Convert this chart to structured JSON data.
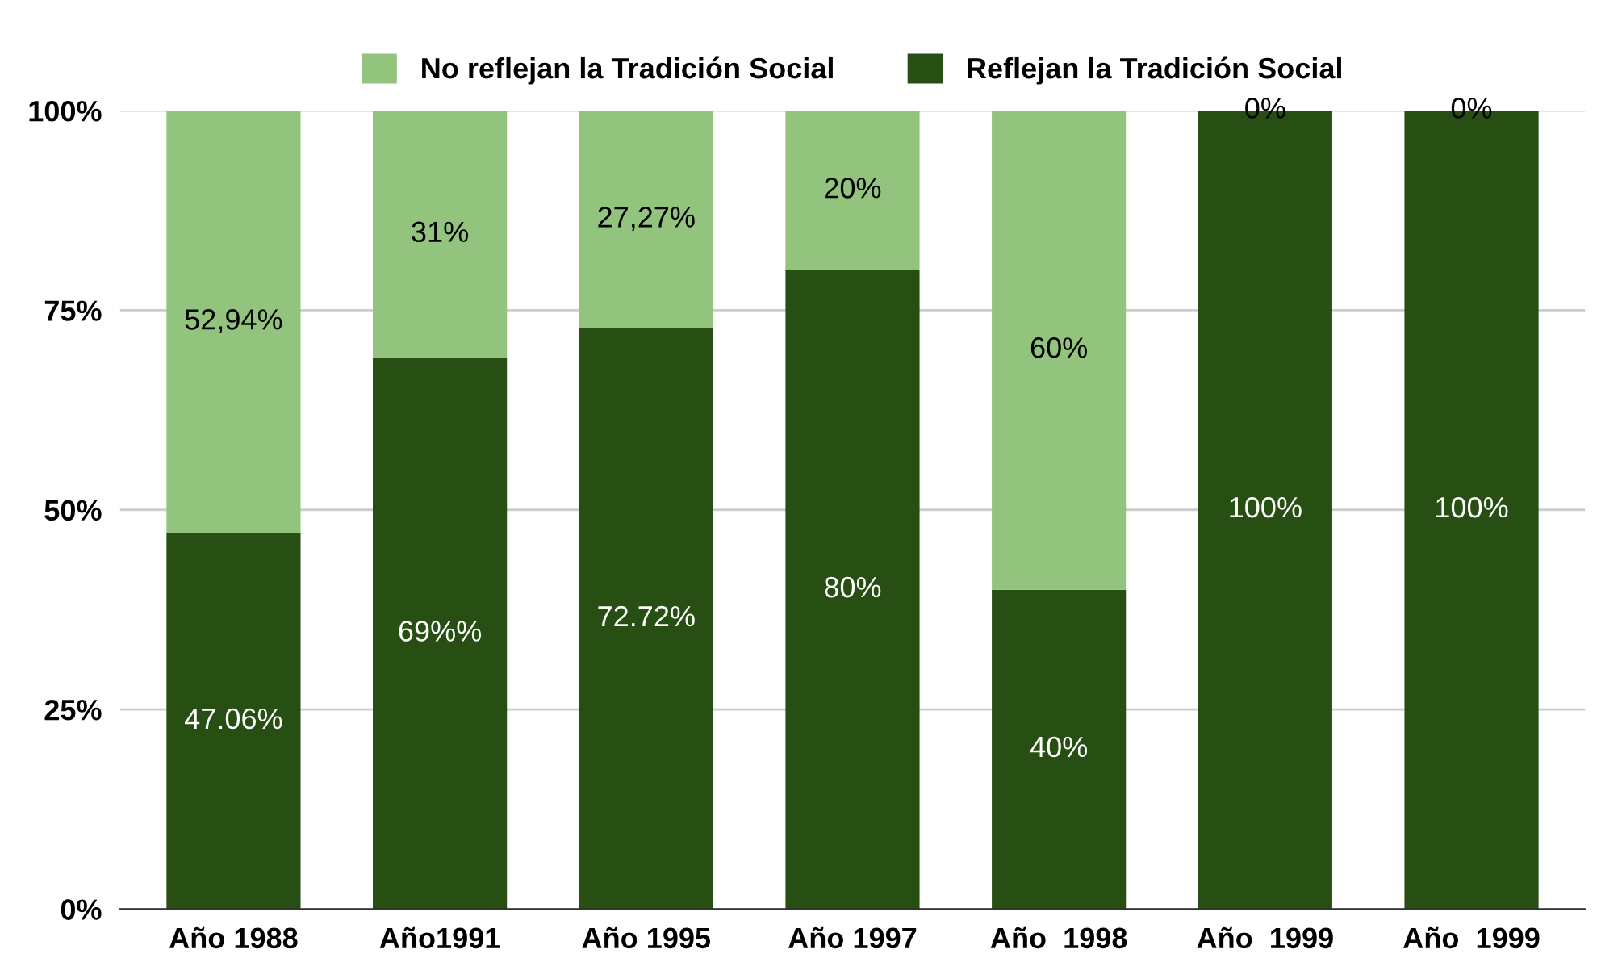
{
  "chart_data": {
    "type": "bar",
    "stacked": true,
    "categories": [
      "Año 1988",
      "Año1991",
      "Año 1995",
      "Año 1997",
      "Año  1998",
      "Año  1999",
      "Año  1999"
    ],
    "series": [
      {
        "name": "Reflejan la Tradición Social",
        "color": "#274e13",
        "values": [
          47.06,
          69,
          72.72,
          80,
          40,
          100,
          100
        ],
        "value_labels": [
          "47.06%",
          "69%%",
          "72.72%",
          "80%",
          "40%",
          "100%",
          "100%"
        ]
      },
      {
        "name": "No reflejan la Tradición Social",
        "color": "#93c47d",
        "values": [
          52.94,
          31,
          27.27,
          20,
          60,
          0,
          0
        ],
        "value_labels": [
          "52,94%",
          "31%",
          "27,27%",
          "20%",
          "60%",
          "0%",
          "0%"
        ]
      }
    ],
    "ylim": [
      0,
      100
    ],
    "yticks": [
      {
        "value": 0,
        "label": "0%"
      },
      {
        "value": 25,
        "label": "25%"
      },
      {
        "value": 50,
        "label": "50%"
      },
      {
        "value": 75,
        "label": "75%"
      },
      {
        "value": 100,
        "label": "100%"
      }
    ],
    "grid": "y",
    "legend": "top"
  }
}
